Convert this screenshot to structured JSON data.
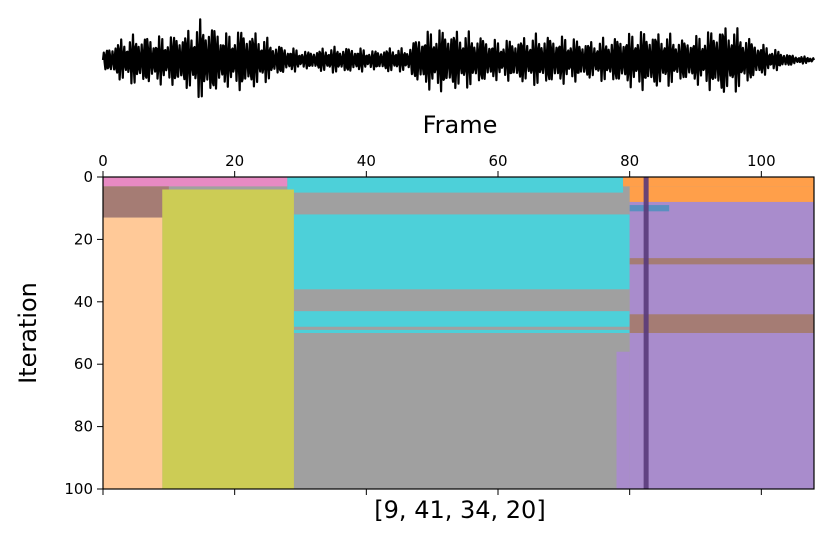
{
  "chart_data": {
    "type": "heatmap",
    "panels": [
      "waveform",
      "segmentation"
    ],
    "waveform": {
      "color": "#000000",
      "x_range": [
        0,
        108
      ],
      "envelope_points": [
        [
          0,
          0.18
        ],
        [
          2,
          0.45
        ],
        [
          5,
          0.6
        ],
        [
          9,
          0.55
        ],
        [
          13,
          0.7
        ],
        [
          15,
          0.95
        ],
        [
          17,
          0.8
        ],
        [
          19,
          0.6
        ],
        [
          21,
          0.75
        ],
        [
          24,
          0.6
        ],
        [
          26,
          0.4
        ],
        [
          28,
          0.3
        ],
        [
          31,
          0.2
        ],
        [
          34,
          0.3
        ],
        [
          38,
          0.3
        ],
        [
          41,
          0.22
        ],
        [
          44,
          0.3
        ],
        [
          46,
          0.25
        ],
        [
          48,
          0.6
        ],
        [
          51,
          0.75
        ],
        [
          54,
          0.7
        ],
        [
          58,
          0.55
        ],
        [
          60,
          0.45
        ],
        [
          62,
          0.5
        ],
        [
          66,
          0.6
        ],
        [
          70,
          0.55
        ],
        [
          74,
          0.45
        ],
        [
          78,
          0.55
        ],
        [
          82,
          0.7
        ],
        [
          85,
          0.65
        ],
        [
          88,
          0.5
        ],
        [
          91,
          0.6
        ],
        [
          94,
          0.85
        ],
        [
          96,
          0.75
        ],
        [
          99,
          0.45
        ],
        [
          102,
          0.25
        ],
        [
          105,
          0.1
        ],
        [
          108,
          0.06
        ]
      ]
    },
    "title": "",
    "xlabel": "Frame",
    "ylabel": "Iteration",
    "bottom_label": "[9, 41, 34, 20]",
    "xlim": [
      0,
      108
    ],
    "ylim": [
      100,
      0
    ],
    "x_ticks": [
      0,
      20,
      40,
      60,
      80,
      100
    ],
    "y_ticks": [
      0,
      20,
      40,
      60,
      80,
      100
    ],
    "vertical_line": {
      "x": 82.5,
      "color": "#5a3a7a"
    },
    "colors": {
      "pink": "#e78ac3",
      "brown": "#a57c74",
      "peach": "#ffc998",
      "olive": "#cccc55",
      "cyan": "#4dd0d9",
      "gray": "#a0a0a0",
      "orange": "#ff9f4a",
      "purple": "#a98ccc",
      "blue": "#5a8fc0"
    },
    "segments": [
      {
        "x0": 0,
        "x1": 108,
        "y0": 0,
        "y1": 100,
        "color": "gray"
      },
      {
        "x0": 0,
        "x1": 28,
        "y0": 0,
        "y1": 3,
        "color": "pink"
      },
      {
        "x0": 28,
        "x1": 79,
        "y0": 0,
        "y1": 5,
        "color": "cyan"
      },
      {
        "x0": 79,
        "x1": 108,
        "y0": 0,
        "y1": 3,
        "color": "orange"
      },
      {
        "x0": 80,
        "x1": 108,
        "y0": 3,
        "y1": 8,
        "color": "orange"
      },
      {
        "x0": 0,
        "x1": 10,
        "y0": 3,
        "y1": 13,
        "color": "brown"
      },
      {
        "x0": 9,
        "x1": 29,
        "y0": 4,
        "y1": 100,
        "color": "olive"
      },
      {
        "x0": 0,
        "x1": 9,
        "y0": 13,
        "y1": 100,
        "color": "peach"
      },
      {
        "x0": 29,
        "x1": 80,
        "y0": 12,
        "y1": 36,
        "color": "cyan"
      },
      {
        "x0": 29,
        "x1": 80,
        "y0": 43,
        "y1": 48,
        "color": "cyan"
      },
      {
        "x0": 29,
        "x1": 80,
        "y0": 49,
        "y1": 50,
        "color": "cyan"
      },
      {
        "x0": 80,
        "x1": 108,
        "y0": 8,
        "y1": 100,
        "color": "purple"
      },
      {
        "x0": 78,
        "x1": 80,
        "y0": 56,
        "y1": 100,
        "color": "purple"
      },
      {
        "x0": 80,
        "x1": 108,
        "y0": 26,
        "y1": 28,
        "color": "brown"
      },
      {
        "x0": 80,
        "x1": 108,
        "y0": 44,
        "y1": 50,
        "color": "brown"
      },
      {
        "x0": 80,
        "x1": 86,
        "y0": 9,
        "y1": 11,
        "color": "blue"
      }
    ]
  }
}
